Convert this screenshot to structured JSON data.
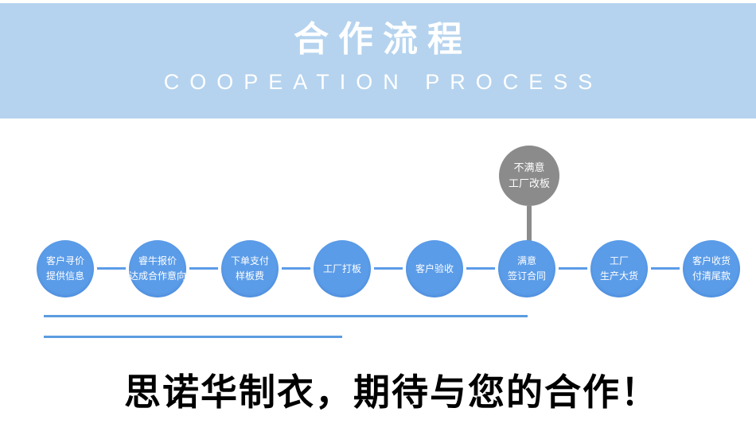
{
  "banner": {
    "title": "合作流程",
    "subtitle": "COOPEATION PROCESS",
    "bg_color": "#b5d3ee",
    "title_color": "#ffffff",
    "subtitle_color": "#ffffff"
  },
  "flow": {
    "node_color": "#5b9ce8",
    "connector_color": "#5b9ce8",
    "nodes": [
      {
        "lines": [
          "客户寻价",
          "提供信息"
        ]
      },
      {
        "lines": [
          "睿牛报价",
          "达成合作意向"
        ]
      },
      {
        "lines": [
          "下单支付",
          "样板费"
        ]
      },
      {
        "lines": [
          "工厂打板"
        ]
      },
      {
        "lines": [
          "客户验收"
        ]
      },
      {
        "lines": [
          "满意",
          "签订合同"
        ]
      },
      {
        "lines": [
          "工厂",
          "生产大货"
        ]
      },
      {
        "lines": [
          "客户收货",
          "付清尾款"
        ]
      }
    ],
    "alt_node": {
      "lines": [
        "不满意",
        "工厂改板"
      ],
      "color": "#8b8b8b"
    }
  },
  "underlines": {
    "color": "#5b9ce0"
  },
  "footer": {
    "headline": "思诺华制衣，期待与您的合作！",
    "color": "#000000"
  }
}
